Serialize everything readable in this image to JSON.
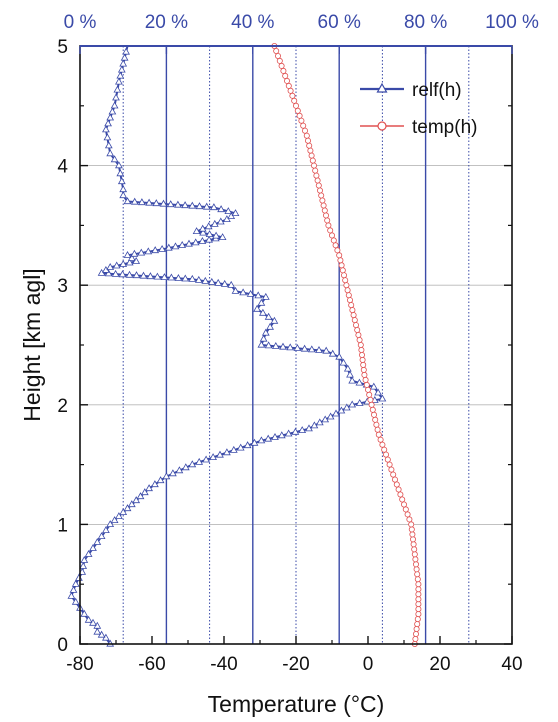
{
  "chart_data": {
    "type": "line",
    "xlabel": "Temperature (°C)",
    "ylabel": "Height [km agl]",
    "x_range": [
      -80,
      40
    ],
    "y_range": [
      0,
      5
    ],
    "x_ticks": [
      "-80",
      "-60",
      "-40",
      "-20",
      "0",
      "20",
      "40"
    ],
    "y_ticks": [
      "0",
      "1",
      "2",
      "3",
      "4",
      "5"
    ],
    "top_axis": {
      "range": [
        0,
        100
      ],
      "ticks": [
        "0 %",
        "20 %",
        "40 %",
        "60 %",
        "80 %",
        "100 %"
      ]
    },
    "grid": true,
    "legend_position": "top-right",
    "series": [
      {
        "name": "relf(h)",
        "color": "#3a4aa8",
        "marker": "triangle",
        "axis": "top (%)",
        "points": [
          [
            7,
            0.0
          ],
          [
            6,
            0.05
          ],
          [
            4,
            0.1
          ],
          [
            4,
            0.15
          ],
          [
            2,
            0.2
          ],
          [
            1,
            0.25
          ],
          [
            0,
            0.3
          ],
          [
            -1,
            0.35
          ],
          [
            -2,
            0.4
          ],
          [
            -1.5,
            0.45
          ],
          [
            -1,
            0.5
          ],
          [
            0.5,
            0.6
          ],
          [
            1,
            0.7
          ],
          [
            3,
            0.8
          ],
          [
            5,
            0.9
          ],
          [
            7,
            1.0
          ],
          [
            10,
            1.1
          ],
          [
            13,
            1.2
          ],
          [
            16,
            1.3
          ],
          [
            20,
            1.4
          ],
          [
            26,
            1.5
          ],
          [
            34,
            1.6
          ],
          [
            42,
            1.7
          ],
          [
            53,
            1.8
          ],
          [
            58,
            1.9
          ],
          [
            63,
            2.0
          ],
          [
            70,
            2.05
          ],
          [
            68,
            2.15
          ],
          [
            63,
            2.2
          ],
          [
            62,
            2.3
          ],
          [
            60,
            2.4
          ],
          [
            57,
            2.45
          ],
          [
            42,
            2.5
          ],
          [
            43,
            2.6
          ],
          [
            45,
            2.7
          ],
          [
            41,
            2.8
          ],
          [
            43,
            2.9
          ],
          [
            36,
            2.95
          ],
          [
            35,
            3.0
          ],
          [
            26,
            3.05
          ],
          [
            5,
            3.1
          ],
          [
            7,
            3.15
          ],
          [
            13,
            3.2
          ],
          [
            11,
            3.25
          ],
          [
            19,
            3.3
          ],
          [
            33,
            3.4
          ],
          [
            27,
            3.45
          ],
          [
            34,
            3.55
          ],
          [
            36,
            3.6
          ],
          [
            31,
            3.65
          ],
          [
            11,
            3.7
          ],
          [
            10,
            3.75
          ],
          [
            10,
            3.8
          ],
          [
            9,
            4.0
          ],
          [
            7,
            4.1
          ],
          [
            6,
            4.3
          ],
          [
            8,
            4.5
          ],
          [
            9,
            4.7
          ],
          [
            10,
            4.85
          ],
          [
            11,
            5.0
          ]
        ]
      },
      {
        "name": "temp(h)",
        "color": "#e05050",
        "marker": "circle",
        "axis": "bottom (°C)",
        "points": [
          [
            13,
            0.0
          ],
          [
            14,
            0.25
          ],
          [
            14,
            0.5
          ],
          [
            13,
            0.75
          ],
          [
            12,
            1.0
          ],
          [
            9,
            1.25
          ],
          [
            6,
            1.5
          ],
          [
            3,
            1.75
          ],
          [
            1,
            2.0
          ],
          [
            -1,
            2.25
          ],
          [
            -2,
            2.5
          ],
          [
            -4,
            2.75
          ],
          [
            -6,
            3.0
          ],
          [
            -8,
            3.25
          ],
          [
            -11,
            3.5
          ],
          [
            -13,
            3.75
          ],
          [
            -15,
            4.0
          ],
          [
            -17,
            4.25
          ],
          [
            -20,
            4.5
          ],
          [
            -23,
            4.75
          ],
          [
            -26,
            5.0
          ]
        ]
      }
    ]
  }
}
